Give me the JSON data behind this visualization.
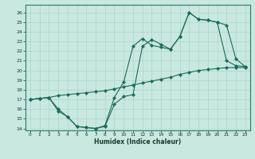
{
  "xlabel": "Humidex (Indice chaleur)",
  "bg_color": "#c8e8e0",
  "line_color": "#1a6b5a",
  "grid_color": "#b0d8d0",
  "xlim": [
    -0.5,
    23.5
  ],
  "ylim": [
    13.8,
    26.8
  ],
  "yticks": [
    14,
    15,
    16,
    17,
    18,
    19,
    20,
    21,
    22,
    23,
    24,
    25,
    26
  ],
  "xticks": [
    0,
    1,
    2,
    3,
    4,
    5,
    6,
    7,
    8,
    9,
    10,
    11,
    12,
    13,
    14,
    15,
    16,
    17,
    18,
    19,
    20,
    21,
    22,
    23
  ],
  "line1_x": [
    0,
    1,
    2,
    3,
    4,
    5,
    6,
    7,
    8,
    9,
    10,
    11,
    12,
    13,
    14,
    15,
    16,
    17,
    18,
    19,
    20,
    21,
    22,
    23
  ],
  "line1_y": [
    17,
    17.1,
    17.2,
    15.8,
    15.2,
    14.2,
    14.1,
    14.0,
    14.2,
    16.5,
    17.3,
    17.5,
    22.5,
    23.2,
    22.7,
    22.2,
    23.5,
    26.0,
    25.3,
    25.2,
    25.0,
    24.7,
    21.2,
    20.4
  ],
  "line2_x": [
    0,
    1,
    2,
    3,
    4,
    5,
    6,
    7,
    8,
    9,
    10,
    11,
    12,
    13,
    14,
    15,
    16,
    17,
    18,
    19,
    20,
    21,
    22,
    23
  ],
  "line2_y": [
    17,
    17.1,
    17.2,
    16.0,
    15.2,
    14.2,
    14.1,
    14.0,
    14.3,
    17.2,
    18.8,
    22.5,
    23.3,
    22.6,
    22.4,
    22.2,
    23.5,
    26.0,
    25.3,
    25.2,
    25.0,
    21.0,
    20.5,
    20.4
  ],
  "line3_x": [
    0,
    1,
    2,
    3,
    4,
    5,
    6,
    7,
    8,
    9,
    10,
    11,
    12,
    13,
    14,
    15,
    16,
    17,
    18,
    19,
    20,
    21,
    22,
    23
  ],
  "line3_y": [
    17,
    17.1,
    17.2,
    17.4,
    17.5,
    17.6,
    17.7,
    17.8,
    17.9,
    18.1,
    18.3,
    18.5,
    18.7,
    18.9,
    19.1,
    19.3,
    19.6,
    19.8,
    20.0,
    20.1,
    20.2,
    20.3,
    20.3,
    20.3
  ]
}
